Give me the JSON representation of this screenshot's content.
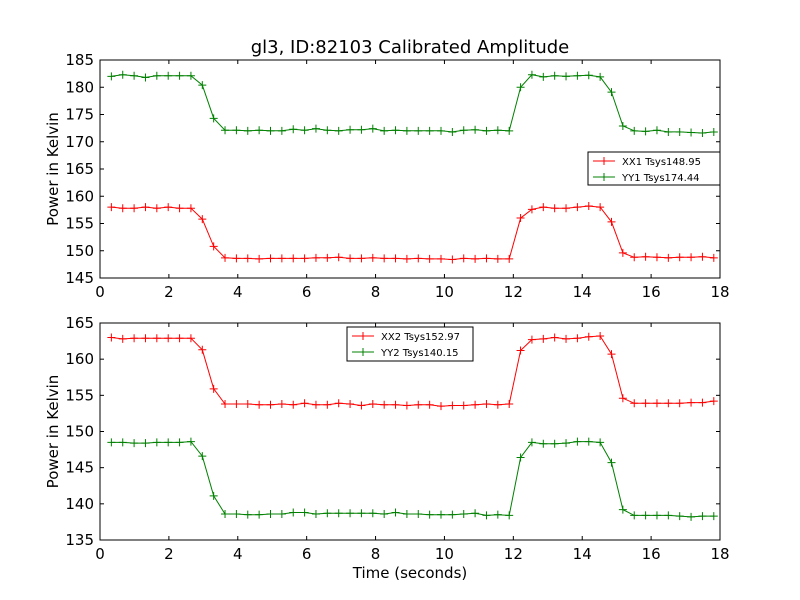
{
  "figure": {
    "title": "gl3, ID:82103 Calibrated Amplitude",
    "xlabel": "Time (seconds)"
  },
  "chart_data": [
    {
      "type": "line",
      "title": "gl3, ID:82103 Calibrated Amplitude",
      "xlabel": "",
      "ylabel": "Power in Kelvin",
      "xlim": [
        0,
        18
      ],
      "ylim": [
        145,
        185
      ],
      "xticks": [
        0,
        2,
        4,
        6,
        8,
        10,
        12,
        14,
        16,
        18
      ],
      "yticks": [
        145,
        150,
        155,
        160,
        165,
        170,
        175,
        180,
        185
      ],
      "grid": false,
      "legend_position": "center-right",
      "x": [
        0.33,
        0.66,
        0.99,
        1.32,
        1.65,
        1.98,
        2.31,
        2.64,
        2.97,
        3.3,
        3.63,
        3.96,
        4.29,
        4.62,
        4.95,
        5.28,
        5.61,
        5.94,
        6.27,
        6.6,
        6.93,
        7.26,
        7.59,
        7.92,
        8.25,
        8.58,
        8.91,
        9.24,
        9.57,
        9.9,
        10.23,
        10.56,
        10.89,
        11.22,
        11.55,
        11.88,
        12.21,
        12.54,
        12.87,
        13.2,
        13.53,
        13.86,
        14.19,
        14.52,
        14.85,
        15.18,
        15.51,
        15.84,
        16.17,
        16.5,
        16.83,
        17.16,
        17.49,
        17.82
      ],
      "series": [
        {
          "name": "XX1 Tsys148.95",
          "color": "#ff0000",
          "values": [
            158.0,
            157.8,
            157.8,
            158.0,
            157.8,
            158.0,
            157.8,
            157.8,
            155.8,
            150.8,
            148.7,
            148.6,
            148.6,
            148.5,
            148.6,
            148.6,
            148.6,
            148.6,
            148.7,
            148.7,
            148.8,
            148.6,
            148.6,
            148.7,
            148.6,
            148.6,
            148.5,
            148.6,
            148.5,
            148.5,
            148.4,
            148.6,
            148.5,
            148.6,
            148.5,
            148.5,
            156.0,
            157.6,
            158.0,
            157.8,
            157.8,
            158.0,
            158.2,
            158.0,
            155.3,
            149.6,
            148.8,
            148.9,
            148.8,
            148.7,
            148.8,
            148.8,
            148.9,
            148.7
          ]
        },
        {
          "name": "YY1 Tsys174.44",
          "color": "#008000",
          "values": [
            182.0,
            182.3,
            182.1,
            181.8,
            182.1,
            182.1,
            182.1,
            182.1,
            180.4,
            174.3,
            172.1,
            172.1,
            172.0,
            172.1,
            172.0,
            172.0,
            172.3,
            172.1,
            172.4,
            172.1,
            172.0,
            172.2,
            172.2,
            172.4,
            172.0,
            172.1,
            172.0,
            172.0,
            172.0,
            172.0,
            171.8,
            172.1,
            172.2,
            172.0,
            172.1,
            172.0,
            180.0,
            182.3,
            181.9,
            182.1,
            182.0,
            182.1,
            182.2,
            181.9,
            179.1,
            172.9,
            172.0,
            171.9,
            172.1,
            171.8,
            171.8,
            171.7,
            171.6,
            171.8
          ]
        }
      ]
    },
    {
      "type": "line",
      "title": "",
      "xlabel": "Time (seconds)",
      "ylabel": "Power in Kelvin",
      "xlim": [
        0,
        18
      ],
      "ylim": [
        135,
        165
      ],
      "xticks": [
        0,
        2,
        4,
        6,
        8,
        10,
        12,
        14,
        16,
        18
      ],
      "yticks": [
        135,
        140,
        145,
        150,
        155,
        160,
        165
      ],
      "grid": false,
      "legend_position": "top-center",
      "x": [
        0.33,
        0.66,
        0.99,
        1.32,
        1.65,
        1.98,
        2.31,
        2.64,
        2.97,
        3.3,
        3.63,
        3.96,
        4.29,
        4.62,
        4.95,
        5.28,
        5.61,
        5.94,
        6.27,
        6.6,
        6.93,
        7.26,
        7.59,
        7.92,
        8.25,
        8.58,
        8.91,
        9.24,
        9.57,
        9.9,
        10.23,
        10.56,
        10.89,
        11.22,
        11.55,
        11.88,
        12.21,
        12.54,
        12.87,
        13.2,
        13.53,
        13.86,
        14.19,
        14.52,
        14.85,
        15.18,
        15.51,
        15.84,
        16.17,
        16.5,
        16.83,
        17.16,
        17.49,
        17.82
      ],
      "series": [
        {
          "name": "XX2 Tsys152.97",
          "color": "#ff0000",
          "values": [
            163.0,
            162.8,
            162.9,
            162.9,
            162.9,
            162.9,
            162.9,
            162.9,
            161.3,
            155.9,
            153.8,
            153.8,
            153.8,
            153.7,
            153.7,
            153.8,
            153.7,
            153.9,
            153.7,
            153.7,
            153.9,
            153.8,
            153.6,
            153.8,
            153.7,
            153.7,
            153.6,
            153.7,
            153.7,
            153.5,
            153.6,
            153.6,
            153.7,
            153.8,
            153.7,
            153.8,
            161.2,
            162.7,
            162.8,
            163.0,
            162.8,
            162.9,
            163.1,
            163.2,
            160.7,
            154.6,
            153.9,
            153.9,
            153.9,
            153.9,
            153.9,
            154.0,
            154.0,
            154.2
          ]
        },
        {
          "name": "YY2 Tsys140.15",
          "color": "#008000",
          "values": [
            148.5,
            148.5,
            148.4,
            148.4,
            148.5,
            148.5,
            148.5,
            148.6,
            146.6,
            141.1,
            138.6,
            138.6,
            138.5,
            138.5,
            138.6,
            138.6,
            138.8,
            138.8,
            138.6,
            138.7,
            138.7,
            138.7,
            138.7,
            138.7,
            138.6,
            138.8,
            138.6,
            138.6,
            138.5,
            138.5,
            138.5,
            138.6,
            138.7,
            138.4,
            138.5,
            138.4,
            146.4,
            148.5,
            148.3,
            148.3,
            148.4,
            148.6,
            148.6,
            148.5,
            145.7,
            139.2,
            138.4,
            138.4,
            138.4,
            138.4,
            138.3,
            138.2,
            138.3,
            138.3
          ]
        }
      ]
    }
  ]
}
